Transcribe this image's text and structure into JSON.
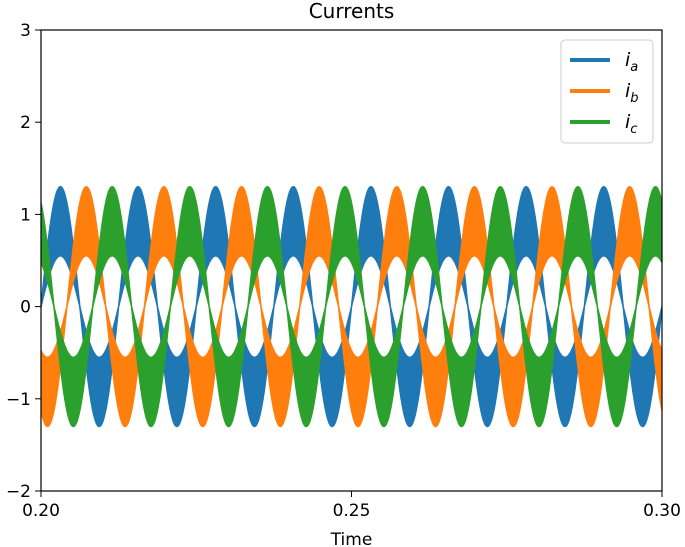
{
  "chart_data": {
    "type": "line",
    "title": "Currents",
    "xlabel": "Time",
    "ylabel": "",
    "xlim": [
      0.2,
      0.3
    ],
    "ylim": [
      -2,
      3
    ],
    "xticks": [
      0.2,
      0.25,
      0.3
    ],
    "xtick_labels": [
      "0.20",
      "0.25",
      "0.30"
    ],
    "yticks": [
      -2,
      -1,
      0,
      1,
      2,
      3
    ],
    "ytick_labels": [
      "−2",
      "−1",
      "0",
      "1",
      "2",
      "3"
    ],
    "grid": false,
    "legend_position": "top-right",
    "fundamental_frequency_hz": 80,
    "amplitude_envelope": [
      0.55,
      1.3
    ],
    "ripple_frequency_hz": 2500,
    "series": [
      {
        "name": "i",
        "subscript": "a",
        "color": "#1f77b4",
        "phase_deg": 0
      },
      {
        "name": "i",
        "subscript": "b",
        "color": "#ff7f0e",
        "phase_deg": -120
      },
      {
        "name": "i",
        "subscript": "c",
        "color": "#2ca02c",
        "phase_deg": 120
      }
    ]
  }
}
